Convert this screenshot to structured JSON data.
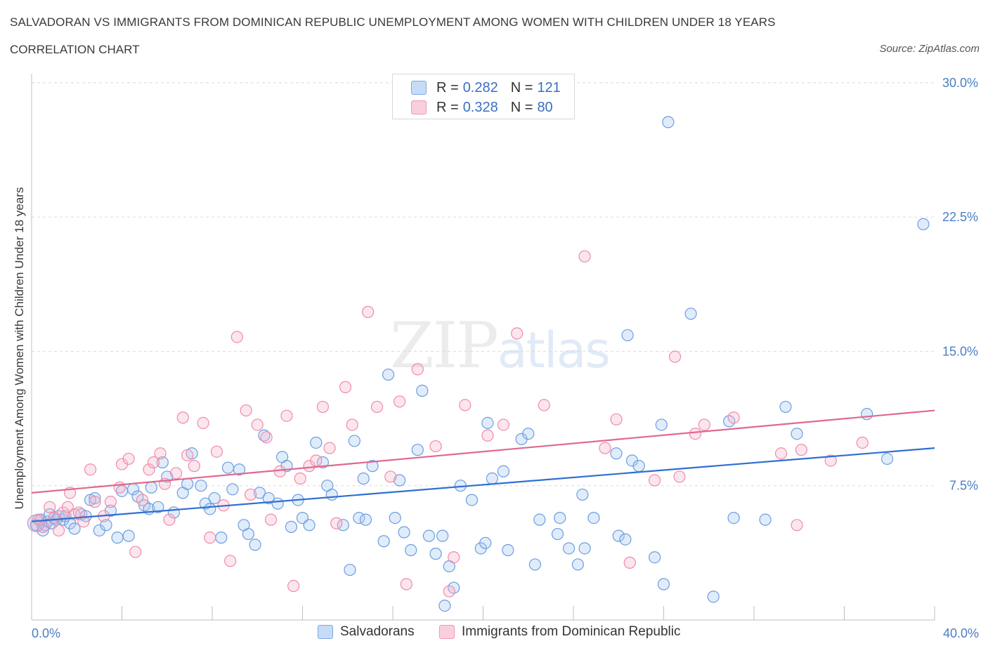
{
  "header": {
    "title": "SALVADORAN VS IMMIGRANTS FROM DOMINICAN REPUBLIC UNEMPLOYMENT AMONG WOMEN WITH CHILDREN UNDER 18 YEARS",
    "subtitle": "CORRELATION CHART",
    "source": "Source: ZipAtlas.com"
  },
  "watermark": {
    "zip": "ZIP",
    "atlas": "atlas"
  },
  "legend": {
    "rows": [
      {
        "r_label": "R = ",
        "r_value": "0.282",
        "n_label": "N = ",
        "n_value": "121",
        "color": "#a8c8f0"
      },
      {
        "r_label": "R = ",
        "r_value": "0.328",
        "n_label": "N = ",
        "n_value": "80",
        "color": "#f5b8cb"
      }
    ]
  },
  "bottom_legend": {
    "items": [
      {
        "label": "Salvadorans",
        "color": "#a8c8f0"
      },
      {
        "label": "Immigrants from Dominican Republic",
        "color": "#f5b8cb"
      }
    ]
  },
  "chart_data": {
    "type": "scatter",
    "ylabel": "Unemployment Among Women with Children Under 18 years",
    "xlim": [
      0,
      40
    ],
    "ylim": [
      0,
      30.5
    ],
    "x_tick_labels": {
      "min": "0.0%",
      "max": "40.0%"
    },
    "y_ticks": [
      {
        "value": 7.5,
        "label": "7.5%"
      },
      {
        "value": 15,
        "label": "15.0%"
      },
      {
        "value": 22.5,
        "label": "22.5%"
      },
      {
        "value": 30,
        "label": "30.0%"
      }
    ],
    "grid": "horizontal dashed",
    "series": [
      {
        "name": "Salvadorans",
        "color": "#6a9ee0",
        "trend": {
          "x0": 0,
          "y0": 5.5,
          "x1": 40,
          "y1": 9.6,
          "color": "#2f6fd1"
        },
        "points": [
          [
            0.2,
            5.3
          ],
          [
            0.4,
            5.6
          ],
          [
            0.5,
            5.0
          ],
          [
            0.6,
            5.3
          ],
          [
            0.7,
            5.5
          ],
          [
            0.8,
            5.9
          ],
          [
            0.9,
            5.4
          ],
          [
            1.0,
            5.7
          ],
          [
            1.1,
            5.6
          ],
          [
            1.2,
            5.8
          ],
          [
            1.4,
            5.6
          ],
          [
            1.5,
            5.8
          ],
          [
            1.7,
            5.4
          ],
          [
            1.9,
            5.1
          ],
          [
            2.2,
            5.9
          ],
          [
            2.4,
            5.8
          ],
          [
            2.6,
            6.7
          ],
          [
            2.8,
            6.8
          ],
          [
            3.0,
            5.0
          ],
          [
            3.3,
            5.3
          ],
          [
            3.5,
            6.1
          ],
          [
            3.8,
            4.6
          ],
          [
            4.0,
            7.2
          ],
          [
            4.3,
            4.7
          ],
          [
            4.5,
            7.3
          ],
          [
            4.7,
            6.9
          ],
          [
            5.0,
            6.4
          ],
          [
            5.2,
            6.2
          ],
          [
            5.3,
            7.4
          ],
          [
            5.6,
            6.3
          ],
          [
            5.8,
            8.8
          ],
          [
            6.0,
            8.0
          ],
          [
            6.3,
            6.0
          ],
          [
            6.7,
            7.1
          ],
          [
            6.9,
            7.6
          ],
          [
            7.1,
            9.3
          ],
          [
            7.5,
            7.5
          ],
          [
            7.7,
            6.5
          ],
          [
            7.9,
            6.2
          ],
          [
            8.1,
            6.8
          ],
          [
            8.4,
            4.6
          ],
          [
            8.7,
            8.5
          ],
          [
            8.9,
            7.3
          ],
          [
            9.2,
            8.4
          ],
          [
            9.4,
            5.3
          ],
          [
            9.6,
            4.8
          ],
          [
            9.9,
            4.2
          ],
          [
            10.1,
            7.1
          ],
          [
            10.3,
            10.3
          ],
          [
            10.5,
            6.8
          ],
          [
            10.9,
            6.5
          ],
          [
            11.1,
            9.1
          ],
          [
            11.3,
            8.6
          ],
          [
            11.5,
            5.2
          ],
          [
            11.8,
            6.7
          ],
          [
            12.0,
            5.7
          ],
          [
            12.3,
            5.3
          ],
          [
            12.6,
            9.9
          ],
          [
            12.9,
            8.8
          ],
          [
            13.1,
            7.5
          ],
          [
            13.3,
            7.0
          ],
          [
            13.8,
            5.3
          ],
          [
            14.1,
            2.8
          ],
          [
            14.3,
            10.0
          ],
          [
            14.5,
            5.7
          ],
          [
            14.8,
            5.6
          ],
          [
            15.1,
            8.6
          ],
          [
            15.6,
            4.4
          ],
          [
            15.8,
            13.7
          ],
          [
            16.1,
            5.7
          ],
          [
            16.3,
            7.8
          ],
          [
            16.5,
            4.9
          ],
          [
            16.8,
            3.9
          ],
          [
            17.1,
            9.5
          ],
          [
            17.3,
            12.8
          ],
          [
            17.6,
            4.7
          ],
          [
            17.9,
            3.7
          ],
          [
            18.2,
            4.7
          ],
          [
            18.5,
            3.0
          ],
          [
            18.7,
            1.8
          ],
          [
            19.0,
            7.5
          ],
          [
            19.5,
            6.7
          ],
          [
            19.9,
            4.0
          ],
          [
            20.1,
            4.3
          ],
          [
            20.4,
            7.9
          ],
          [
            20.9,
            8.3
          ],
          [
            21.1,
            3.9
          ],
          [
            21.7,
            10.1
          ],
          [
            22.0,
            10.4
          ],
          [
            22.3,
            3.1
          ],
          [
            22.5,
            5.6
          ],
          [
            23.3,
            4.8
          ],
          [
            23.4,
            5.7
          ],
          [
            23.8,
            4.0
          ],
          [
            24.2,
            3.1
          ],
          [
            24.4,
            7.0
          ],
          [
            24.5,
            4.0
          ],
          [
            24.9,
            5.7
          ],
          [
            25.9,
            9.3
          ],
          [
            26.4,
            15.9
          ],
          [
            26.0,
            4.7
          ],
          [
            26.3,
            4.5
          ],
          [
            26.6,
            8.9
          ],
          [
            27.6,
            3.5
          ],
          [
            27.9,
            10.9
          ],
          [
            28.2,
            27.8
          ],
          [
            28.0,
            2.0
          ],
          [
            29.2,
            17.1
          ],
          [
            30.2,
            1.3
          ],
          [
            30.9,
            11.1
          ],
          [
            31.1,
            5.7
          ],
          [
            32.5,
            5.6
          ],
          [
            33.4,
            11.9
          ],
          [
            33.9,
            10.4
          ],
          [
            37.0,
            11.5
          ],
          [
            37.9,
            9.0
          ],
          [
            39.5,
            22.1
          ],
          [
            26.9,
            8.6
          ],
          [
            20.2,
            11.0
          ],
          [
            18.3,
            0.8
          ],
          [
            14.7,
            7.9
          ]
        ]
      },
      {
        "name": "Immigrants from Dominican Republic",
        "color": "#f08aaa",
        "trend": {
          "x0": 0,
          "y0": 7.1,
          "x1": 40,
          "y1": 11.7,
          "color": "#e06890"
        },
        "points": [
          [
            0.3,
            5.6
          ],
          [
            0.5,
            5.2
          ],
          [
            0.8,
            6.3
          ],
          [
            1.0,
            5.7
          ],
          [
            1.2,
            5.0
          ],
          [
            1.4,
            6.0
          ],
          [
            1.6,
            6.3
          ],
          [
            1.7,
            7.1
          ],
          [
            1.9,
            5.9
          ],
          [
            2.1,
            6.0
          ],
          [
            2.3,
            5.5
          ],
          [
            2.6,
            8.4
          ],
          [
            2.8,
            6.6
          ],
          [
            3.2,
            5.8
          ],
          [
            3.5,
            6.6
          ],
          [
            3.9,
            7.4
          ],
          [
            4.0,
            8.7
          ],
          [
            4.3,
            9.0
          ],
          [
            4.6,
            3.8
          ],
          [
            4.9,
            6.7
          ],
          [
            5.2,
            8.4
          ],
          [
            5.4,
            8.8
          ],
          [
            5.7,
            9.3
          ],
          [
            5.9,
            7.6
          ],
          [
            6.1,
            5.6
          ],
          [
            6.4,
            8.2
          ],
          [
            6.7,
            11.3
          ],
          [
            6.9,
            9.2
          ],
          [
            7.2,
            8.6
          ],
          [
            7.6,
            11.0
          ],
          [
            7.9,
            4.6
          ],
          [
            8.2,
            9.4
          ],
          [
            8.5,
            6.4
          ],
          [
            8.8,
            3.3
          ],
          [
            9.1,
            15.8
          ],
          [
            9.5,
            11.7
          ],
          [
            9.7,
            7.0
          ],
          [
            10.0,
            10.9
          ],
          [
            10.4,
            10.2
          ],
          [
            10.6,
            5.6
          ],
          [
            11.0,
            8.3
          ],
          [
            11.3,
            11.4
          ],
          [
            11.6,
            1.9
          ],
          [
            11.9,
            7.9
          ],
          [
            12.3,
            8.6
          ],
          [
            12.6,
            8.9
          ],
          [
            12.9,
            11.9
          ],
          [
            13.2,
            9.6
          ],
          [
            13.5,
            5.4
          ],
          [
            13.9,
            13.0
          ],
          [
            14.2,
            10.9
          ],
          [
            14.9,
            17.2
          ],
          [
            15.3,
            11.9
          ],
          [
            15.9,
            8.0
          ],
          [
            16.3,
            12.2
          ],
          [
            16.6,
            2.0
          ],
          [
            17.1,
            14.0
          ],
          [
            17.9,
            9.7
          ],
          [
            18.5,
            1.6
          ],
          [
            18.7,
            3.5
          ],
          [
            19.2,
            12.0
          ],
          [
            20.2,
            10.3
          ],
          [
            20.9,
            10.9
          ],
          [
            21.5,
            16.0
          ],
          [
            22.7,
            12.0
          ],
          [
            24.5,
            20.3
          ],
          [
            25.4,
            9.6
          ],
          [
            25.9,
            11.2
          ],
          [
            26.5,
            3.2
          ],
          [
            27.6,
            7.8
          ],
          [
            28.5,
            14.7
          ],
          [
            28.7,
            8.0
          ],
          [
            29.4,
            10.4
          ],
          [
            29.8,
            10.9
          ],
          [
            31.1,
            11.3
          ],
          [
            33.2,
            9.3
          ],
          [
            33.9,
            5.3
          ],
          [
            34.1,
            9.5
          ],
          [
            35.4,
            8.9
          ],
          [
            36.8,
            9.9
          ]
        ]
      }
    ]
  }
}
